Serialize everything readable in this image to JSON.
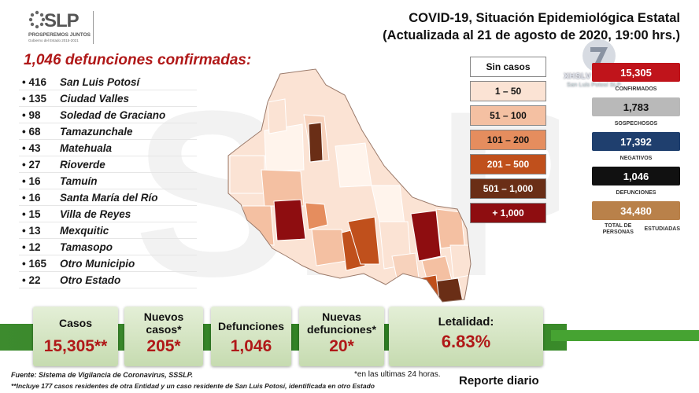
{
  "header": {
    "logo_text": "SLP",
    "logo_tagline": "PROSPEREMOS JUNTOS",
    "logo_subtitle": "Gobierno del Estado 2015-2021",
    "title_line1": "COVID-19, Situación Epidemiológica Estatal",
    "title_line2": "(Actualizada al 21 de agosto de 2020, 19:00 hrs.)"
  },
  "deaths": {
    "title": "1,046 defunciones confirmadas:",
    "items": [
      {
        "count": "• 416",
        "place": "San Luis Potosí"
      },
      {
        "count": "• 135",
        "place": "Ciudad Valles"
      },
      {
        "count": "• 98",
        "place": "Soledad de Graciano"
      },
      {
        "count": "• 68",
        "place": "Tamazunchale"
      },
      {
        "count": "• 43",
        "place": "Matehuala"
      },
      {
        "count": "• 27",
        "place": "Rioverde"
      },
      {
        "count": "• 16",
        "place": "Tamuín"
      },
      {
        "count": "• 16",
        "place": "Santa María del Río"
      },
      {
        "count": "• 15",
        "place": "Villa de Reyes"
      },
      {
        "count": "• 13",
        "place": "Mexquitic"
      },
      {
        "count": "• 12",
        "place": "Tamasopo"
      },
      {
        "count": "• 165",
        "place": "Otro Municipio"
      },
      {
        "count": "• 22",
        "place": "Otro Estado"
      }
    ]
  },
  "legend": {
    "items": [
      {
        "label": "Sin casos",
        "color": "#ffffff",
        "text_color": "#111111"
      },
      {
        "label": "1 – 50",
        "color": "#fbe3d4",
        "text_color": "#111111"
      },
      {
        "label": "51 – 100",
        "color": "#f4c0a2",
        "text_color": "#111111"
      },
      {
        "label": "101 – 200",
        "color": "#e58d5e",
        "text_color": "#111111"
      },
      {
        "label": "201 – 500",
        "color": "#c0501c",
        "text_color": "#ffffff"
      },
      {
        "label": "501 – 1,000",
        "color": "#6a2e16",
        "text_color": "#ffffff"
      },
      {
        "label": "+ 1,000",
        "color": "#8e0d10",
        "text_color": "#ffffff"
      }
    ]
  },
  "channel": {
    "name": "XHSLV - TDT",
    "location": "San Luis Potosí SLP"
  },
  "stats": {
    "confirmed": {
      "value": "15,305",
      "label": "CONFIRMADOS",
      "color": "#c0141b"
    },
    "suspected": {
      "value": "1,783",
      "label": "SOSPECHOSOS",
      "color": "#b9b9b9"
    },
    "negative": {
      "value": "17,392",
      "label": "NEGATIVOS",
      "color": "#1f3f6e"
    },
    "deaths": {
      "value": "1,046",
      "label": "DEFUNCIONES",
      "color": "#111111"
    },
    "studied": {
      "value": "34,480",
      "label_line1": "TOTAL DE PERSONAS",
      "label_line2": "ESTUDIADAS",
      "color": "#b9814a"
    }
  },
  "summary": {
    "cases_label": "Casos",
    "cases_value": "15,305**",
    "new_cases_label1": "Nuevos",
    "new_cases_label2": "casos*",
    "new_cases_value": "205*",
    "deaths_label": "Defunciones",
    "deaths_value": "1,046",
    "new_deaths_label1": "Nuevas",
    "new_deaths_label2": "defunciones*",
    "new_deaths_value": "20*",
    "lethality_label": "Letalidad:",
    "lethality_value": "6.83%"
  },
  "footer": {
    "source": "Fuente: Sistema de Vigilancia de Coronavirus, SSSLP.",
    "note": "**Incluye 177 casos residentes de otra Entidad y un caso residente de San Luis Potosí, identificada en otro Estado",
    "last24": "*en las ultimas 24 horas.",
    "report": "Reporte diario"
  }
}
